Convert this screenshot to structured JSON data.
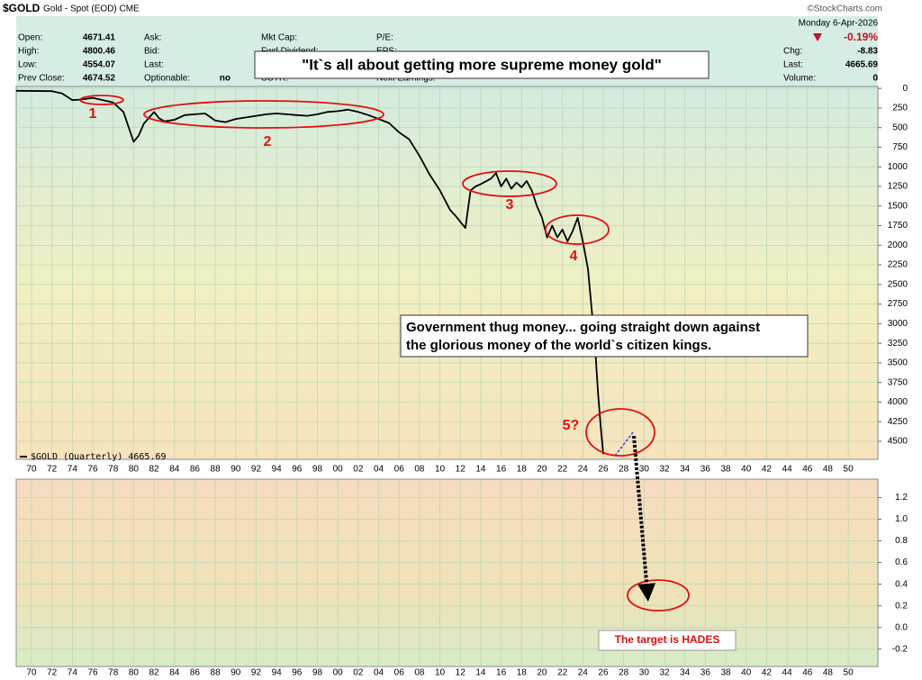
{
  "header": {
    "symbol": "$GOLD",
    "description": "Gold - Spot (EOD) CME",
    "source": "©StockCharts.com",
    "date": "Monday  6-Apr-2026",
    "change_pct": "-0.19%",
    "columns": [
      [
        {
          "label": "Open:",
          "value": "4671.41"
        },
        {
          "label": "High:",
          "value": "4800.46"
        },
        {
          "label": "Low:",
          "value": "4554.07"
        },
        {
          "label": "Prev Close:",
          "value": "4674.52"
        }
      ],
      [
        {
          "label": "Ask:"
        },
        {
          "label": "Bid:"
        },
        {
          "label": "Last:"
        },
        {
          "label": "Optionable:",
          "value": "no"
        }
      ],
      [
        {
          "label": "Mkt Cap:"
        },
        {
          "label": "Fwd Dividend:"
        },
        {
          "label": "SCTR:"
        }
      ],
      [
        {
          "label": "P/E:"
        },
        {
          "label": "EPS:"
        },
        {
          "label": "Next Earnings:"
        }
      ],
      [
        {
          "label": "Chg:",
          "value": "-8.83"
        },
        {
          "label": "Last:",
          "value": "4665.69"
        },
        {
          "label": "Volume:",
          "value": "0"
        }
      ]
    ]
  },
  "annotations": {
    "headline": "\"It`s all about getting more supreme money gold\"",
    "note_lines": [
      "Government thug money... going straight down against",
      "the glorious money of the world`s citizen kings."
    ],
    "markers": [
      "1",
      "2",
      "3",
      "4",
      "5?"
    ],
    "target": "The target is HADES"
  },
  "chart_data": [
    {
      "type": "line",
      "y_inverted": true,
      "y_axis_side": "right",
      "grid": true,
      "legend": "lower left",
      "xlim": [
        1968.5,
        2052.9
      ],
      "ylim": [
        -25,
        4730
      ],
      "xticks": [
        {
          "value": 1970,
          "label": "70"
        },
        {
          "value": 1972,
          "label": "72"
        },
        {
          "value": 1974,
          "label": "74"
        },
        {
          "value": 1976,
          "label": "76"
        },
        {
          "value": 1978,
          "label": "78"
        },
        {
          "value": 1980,
          "label": "80"
        },
        {
          "value": 1982,
          "label": "82"
        },
        {
          "value": 1984,
          "label": "84"
        },
        {
          "value": 1986,
          "label": "86"
        },
        {
          "value": 1988,
          "label": "88"
        },
        {
          "value": 1990,
          "label": "90"
        },
        {
          "value": 1992,
          "label": "92"
        },
        {
          "value": 1994,
          "label": "94"
        },
        {
          "value": 1996,
          "label": "96"
        },
        {
          "value": 1998,
          "label": "98"
        },
        {
          "value": 2000,
          "label": "00"
        },
        {
          "value": 2002,
          "label": "02"
        },
        {
          "value": 2004,
          "label": "04"
        },
        {
          "value": 2006,
          "label": "06"
        },
        {
          "value": 2008,
          "label": "08"
        },
        {
          "value": 2010,
          "label": "10"
        },
        {
          "value": 2012,
          "label": "12"
        },
        {
          "value": 2014,
          "label": "14"
        },
        {
          "value": 2016,
          "label": "16"
        },
        {
          "value": 2018,
          "label": "18"
        },
        {
          "value": 2020,
          "label": "20"
        },
        {
          "value": 2022,
          "label": "22"
        },
        {
          "value": 2024,
          "label": "24"
        },
        {
          "value": 2026,
          "label": "26"
        },
        {
          "value": 2028,
          "label": "28"
        },
        {
          "value": 2030,
          "label": "30"
        },
        {
          "value": 2032,
          "label": "32"
        },
        {
          "value": 2034,
          "label": "34"
        },
        {
          "value": 2036,
          "label": "36"
        },
        {
          "value": 2038,
          "label": "38"
        },
        {
          "value": 2040,
          "label": "40"
        },
        {
          "value": 2042,
          "label": "42"
        },
        {
          "value": 2044,
          "label": "44"
        },
        {
          "value": 2046,
          "label": "46"
        },
        {
          "value": 2048,
          "label": "48"
        },
        {
          "value": 2050,
          "label": "50"
        }
      ],
      "yticks": [
        0,
        250,
        500,
        750,
        1000,
        1250,
        1500,
        1750,
        2000,
        2250,
        2500,
        2750,
        3000,
        3250,
        3500,
        3750,
        4000,
        4250,
        4500
      ],
      "x": [
        1968.5,
        1972,
        1973,
        1974,
        1975,
        1976,
        1977,
        1978,
        1979,
        1980,
        1980.5,
        1981,
        1982,
        1982.5,
        1983,
        1984,
        1985,
        1986,
        1987,
        1988,
        1989,
        1990,
        1991,
        1992,
        1993,
        1994,
        1995,
        1996,
        1997,
        1998,
        1999,
        2000,
        2001,
        2002,
        2003,
        2004,
        2005,
        2006,
        2007,
        2008,
        2009,
        2010,
        2011,
        2011.5,
        2012,
        2012.5,
        2013,
        2013.5,
        2014,
        2015,
        2015.5,
        2016,
        2016.5,
        2017,
        2017.5,
        2018,
        2018.5,
        2019,
        2019.5,
        2020,
        2020.5,
        2021,
        2021.5,
        2022,
        2022.5,
        2023,
        2023.5,
        2024,
        2024.5,
        2024.75,
        2025,
        2025.25,
        2025.5,
        2025.75,
        2026
      ],
      "series": [
        {
          "name": "$GOLD (Quarterly) 4665.69",
          "color": "#000000",
          "values": [
            30,
            35,
            65,
            150,
            140,
            120,
            150,
            180,
            300,
            680,
            600,
            450,
            300,
            380,
            420,
            400,
            340,
            330,
            320,
            410,
            430,
            390,
            370,
            350,
            330,
            320,
            330,
            340,
            350,
            330,
            300,
            290,
            270,
            300,
            340,
            390,
            440,
            560,
            650,
            860,
            1100,
            1300,
            1550,
            1620,
            1700,
            1780,
            1300,
            1250,
            1220,
            1150,
            1080,
            1250,
            1150,
            1280,
            1200,
            1260,
            1180,
            1300,
            1500,
            1650,
            1900,
            1750,
            1900,
            1800,
            1950,
            1820,
            1650,
            1950,
            2300,
            2650,
            3000,
            3400,
            3900,
            4300,
            4665.69
          ]
        }
      ]
    },
    {
      "type": "line",
      "grid": true,
      "y_axis_side": "right",
      "xlim": [
        1968.5,
        2052.9
      ],
      "ylim": [
        -0.36,
        1.37
      ],
      "xticks": [
        {
          "value": 1970,
          "label": "70"
        },
        {
          "value": 1972,
          "label": "72"
        },
        {
          "value": 1974,
          "label": "74"
        },
        {
          "value": 1976,
          "label": "76"
        },
        {
          "value": 1978,
          "label": "78"
        },
        {
          "value": 1980,
          "label": "80"
        },
        {
          "value": 1982,
          "label": "82"
        },
        {
          "value": 1984,
          "label": "84"
        },
        {
          "value": 1986,
          "label": "86"
        },
        {
          "value": 1988,
          "label": "88"
        },
        {
          "value": 1990,
          "label": "90"
        },
        {
          "value": 1992,
          "label": "92"
        },
        {
          "value": 1994,
          "label": "94"
        },
        {
          "value": 1996,
          "label": "96"
        },
        {
          "value": 1998,
          "label": "98"
        },
        {
          "value": 2000,
          "label": "00"
        },
        {
          "value": 2002,
          "label": "02"
        },
        {
          "value": 2004,
          "label": "04"
        },
        {
          "value": 2006,
          "label": "06"
        },
        {
          "value": 2008,
          "label": "08"
        },
        {
          "value": 2010,
          "label": "10"
        },
        {
          "value": 2012,
          "label": "12"
        },
        {
          "value": 2014,
          "label": "14"
        },
        {
          "value": 2016,
          "label": "16"
        },
        {
          "value": 2018,
          "label": "18"
        },
        {
          "value": 2020,
          "label": "20"
        },
        {
          "value": 2022,
          "label": "22"
        },
        {
          "value": 2024,
          "label": "24"
        },
        {
          "value": 2026,
          "label": "26"
        },
        {
          "value": 2028,
          "label": "28"
        },
        {
          "value": 2030,
          "label": "30"
        },
        {
          "value": 2032,
          "label": "32"
        },
        {
          "value": 2034,
          "label": "34"
        },
        {
          "value": 2036,
          "label": "36"
        },
        {
          "value": 2038,
          "label": "38"
        },
        {
          "value": 2040,
          "label": "40"
        },
        {
          "value": 2042,
          "label": "42"
        },
        {
          "value": 2044,
          "label": "44"
        },
        {
          "value": 2046,
          "label": "46"
        },
        {
          "value": 2048,
          "label": "48"
        },
        {
          "value": 2050,
          "label": "50"
        }
      ],
      "yticks": [
        1.2,
        {
          "value": 1,
          "label": "1.0"
        },
        0.8,
        0.6,
        0.4,
        0.2,
        {
          "value": 0,
          "label": "0.0"
        },
        -0.2
      ]
    }
  ]
}
